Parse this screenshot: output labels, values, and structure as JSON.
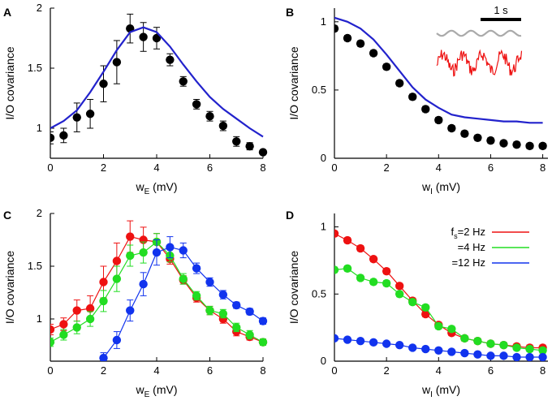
{
  "chart_data": [
    {
      "panel": "A",
      "type": "scatter",
      "xlabel": "w",
      "xlabel_sub": "E",
      "xlabel_unit": " (mV)",
      "ylabel": "I/O covariance",
      "xlim": [
        0,
        8
      ],
      "ylim": [
        0.75,
        2.0
      ],
      "xticks": [
        0,
        2,
        4,
        6,
        8
      ],
      "yticks": [
        1,
        1.5,
        2
      ],
      "ytick_labels": [
        "1",
        "1.5",
        "2"
      ],
      "series": [
        {
          "name": "data",
          "kind": "points_err",
          "color": "#000000",
          "x": [
            0,
            0.5,
            1,
            1.5,
            2,
            2.5,
            3,
            3.5,
            4,
            4.5,
            5,
            5.5,
            6,
            6.5,
            7,
            7.5,
            8
          ],
          "y": [
            0.92,
            0.94,
            1.09,
            1.12,
            1.37,
            1.55,
            1.83,
            1.76,
            1.75,
            1.57,
            1.39,
            1.2,
            1.1,
            1.02,
            0.89,
            0.85,
            0.8
          ],
          "err": [
            0.05,
            0.06,
            0.12,
            0.12,
            0.15,
            0.18,
            0.12,
            0.12,
            0.09,
            0.05,
            0.04,
            0.04,
            0.04,
            0.04,
            0.04,
            0.03,
            0.02
          ]
        },
        {
          "name": "theory",
          "kind": "line",
          "color": "#2222cc",
          "x": [
            0,
            0.5,
            1,
            1.5,
            2,
            2.5,
            3,
            3.5,
            4,
            4.5,
            5,
            5.5,
            6,
            6.5,
            7,
            7.5,
            8
          ],
          "y": [
            1.0,
            1.06,
            1.15,
            1.3,
            1.47,
            1.65,
            1.8,
            1.84,
            1.8,
            1.68,
            1.53,
            1.39,
            1.26,
            1.16,
            1.08,
            1.0,
            0.93
          ]
        }
      ]
    },
    {
      "panel": "B",
      "type": "scatter",
      "xlabel": "w",
      "xlabel_sub": "I",
      "xlabel_unit": " (mV)",
      "ylabel": "I/O covariance",
      "xlim": [
        0,
        8.2
      ],
      "ylim": [
        0,
        1.1
      ],
      "xticks": [
        0,
        2,
        4,
        6,
        8
      ],
      "yticks": [
        0,
        0.5,
        1
      ],
      "ytick_labels": [
        "0",
        "0.5",
        "1"
      ],
      "scale_bar_label": "1 s",
      "series": [
        {
          "name": "data",
          "kind": "points_err",
          "color": "#000000",
          "x": [
            0,
            0.5,
            1,
            1.5,
            2,
            2.5,
            3,
            3.5,
            4,
            4.5,
            5,
            5.5,
            6,
            6.5,
            7,
            7.5,
            8
          ],
          "y": [
            0.95,
            0.88,
            0.84,
            0.77,
            0.67,
            0.55,
            0.45,
            0.36,
            0.28,
            0.22,
            0.18,
            0.15,
            0.13,
            0.11,
            0.1,
            0.09,
            0.09
          ],
          "err": [
            0.02,
            0.02,
            0.02,
            0.02,
            0.02,
            0.02,
            0.02,
            0.02,
            0.02,
            0.02,
            0.02,
            0.02,
            0.02,
            0.02,
            0.02,
            0.02,
            0.02
          ]
        },
        {
          "name": "theory",
          "kind": "line",
          "color": "#2222cc",
          "x": [
            0,
            0.5,
            1,
            1.5,
            2,
            2.5,
            3,
            3.5,
            4,
            4.5,
            5,
            5.5,
            6,
            6.5,
            7,
            7.5,
            8
          ],
          "y": [
            1.03,
            1.0,
            0.95,
            0.87,
            0.76,
            0.64,
            0.52,
            0.43,
            0.37,
            0.32,
            0.3,
            0.29,
            0.28,
            0.27,
            0.27,
            0.26,
            0.26
          ]
        }
      ]
    },
    {
      "panel": "C",
      "type": "line",
      "xlabel": "w",
      "xlabel_sub": "E",
      "xlabel_unit": " (mV)",
      "ylabel": "I/O covariance",
      "xlim": [
        0,
        8
      ],
      "ylim": [
        0.6,
        2.0
      ],
      "xticks": [
        0,
        2,
        4,
        6,
        8
      ],
      "yticks": [
        1,
        1.5,
        2
      ],
      "ytick_labels": [
        "1",
        "1.5",
        "2"
      ],
      "series": [
        {
          "name": "2 Hz",
          "kind": "points_err_line",
          "color": "#ee1111",
          "x": [
            0,
            0.5,
            1,
            1.5,
            2,
            2.5,
            3,
            3.5,
            4,
            4.5,
            5,
            5.5,
            6,
            6.5,
            7,
            7.5,
            8
          ],
          "y": [
            0.9,
            0.95,
            1.08,
            1.1,
            1.35,
            1.55,
            1.78,
            1.75,
            1.73,
            1.57,
            1.37,
            1.2,
            1.08,
            1.0,
            0.88,
            0.83,
            0.78
          ],
          "err": [
            0.05,
            0.06,
            0.1,
            0.12,
            0.15,
            0.17,
            0.15,
            0.12,
            0.08,
            0.05,
            0.04,
            0.04,
            0.04,
            0.04,
            0.04,
            0.03,
            0.03
          ]
        },
        {
          "name": "4 Hz",
          "kind": "points_err_line",
          "color": "#22dd22",
          "x": [
            0,
            0.5,
            1,
            1.5,
            2,
            2.5,
            3,
            3.5,
            4,
            4.5,
            5,
            5.5,
            6,
            6.5,
            7,
            7.5,
            8
          ],
          "y": [
            0.78,
            0.85,
            0.92,
            1.0,
            1.17,
            1.38,
            1.6,
            1.63,
            1.73,
            1.6,
            1.38,
            1.22,
            1.08,
            1.05,
            0.92,
            0.85,
            0.78
          ],
          "err": [
            0.04,
            0.05,
            0.06,
            0.07,
            0.1,
            0.12,
            0.1,
            0.1,
            0.08,
            0.06,
            0.05,
            0.04,
            0.04,
            0.04,
            0.04,
            0.04,
            0.03
          ]
        },
        {
          "name": "12 Hz",
          "kind": "points_err_line",
          "color": "#1133ee",
          "x": [
            2,
            2.5,
            3,
            3.5,
            4,
            4.5,
            5,
            5.5,
            6,
            6.5,
            7,
            7.5,
            8
          ],
          "y": [
            0.63,
            0.8,
            1.08,
            1.33,
            1.63,
            1.68,
            1.65,
            1.48,
            1.35,
            1.23,
            1.13,
            1.07,
            0.98
          ],
          "err": [
            0.05,
            0.08,
            0.1,
            0.11,
            0.12,
            0.1,
            0.07,
            0.05,
            0.04,
            0.04,
            0.03,
            0.03,
            0.03
          ]
        }
      ]
    },
    {
      "panel": "D",
      "type": "line",
      "xlabel": "w",
      "xlabel_sub": "I",
      "xlabel_unit": " (mV)",
      "ylabel": "I/O covariance",
      "xlim": [
        0,
        8.2
      ],
      "ylim": [
        0,
        1.1
      ],
      "xticks": [
        0,
        2,
        4,
        6,
        8
      ],
      "yticks": [
        0,
        0.5,
        1
      ],
      "ytick_labels": [
        "0",
        "0.5",
        "1"
      ],
      "legend": {
        "position": "top-right",
        "entries": [
          {
            "prefix": "f",
            "sub": "s",
            "text": "=2 Hz",
            "color": "#ee1111"
          },
          {
            "prefix": "",
            "sub": "",
            "text": "=4 Hz",
            "color": "#22dd22"
          },
          {
            "prefix": "",
            "sub": "",
            "text": "=12 Hz",
            "color": "#1133ee"
          }
        ]
      },
      "series": [
        {
          "name": "2 Hz",
          "kind": "points_err_line",
          "color": "#ee1111",
          "x": [
            0,
            0.5,
            1,
            1.5,
            2,
            2.5,
            3,
            3.5,
            4,
            4.5,
            5,
            5.5,
            6,
            6.5,
            7,
            7.5,
            8
          ],
          "y": [
            0.95,
            0.9,
            0.84,
            0.76,
            0.67,
            0.56,
            0.45,
            0.35,
            0.27,
            0.21,
            0.17,
            0.15,
            0.13,
            0.12,
            0.11,
            0.1,
            0.1
          ],
          "err": [
            0.02,
            0.02,
            0.02,
            0.02,
            0.02,
            0.02,
            0.02,
            0.02,
            0.02,
            0.02,
            0.02,
            0.02,
            0.02,
            0.02,
            0.02,
            0.02,
            0.02
          ]
        },
        {
          "name": "4 Hz",
          "kind": "points_err_line",
          "color": "#22dd22",
          "x": [
            0,
            0.5,
            1,
            1.5,
            2,
            2.5,
            3,
            3.5,
            4,
            4.5,
            5,
            5.5,
            6,
            6.5,
            7,
            7.5,
            8
          ],
          "y": [
            0.68,
            0.69,
            0.62,
            0.59,
            0.58,
            0.5,
            0.44,
            0.4,
            0.26,
            0.24,
            0.17,
            0.15,
            0.13,
            0.12,
            0.1,
            0.09,
            0.08
          ],
          "err": [
            0.02,
            0.02,
            0.02,
            0.02,
            0.02,
            0.02,
            0.02,
            0.02,
            0.02,
            0.02,
            0.02,
            0.02,
            0.02,
            0.02,
            0.02,
            0.02,
            0.02
          ]
        },
        {
          "name": "12 Hz",
          "kind": "points_err_line",
          "color": "#1133ee",
          "x": [
            0,
            0.5,
            1,
            1.5,
            2,
            2.5,
            3,
            3.5,
            4,
            4.5,
            5,
            5.5,
            6,
            6.5,
            7,
            7.5,
            8
          ],
          "y": [
            0.17,
            0.16,
            0.15,
            0.14,
            0.13,
            0.12,
            0.1,
            0.09,
            0.08,
            0.07,
            0.06,
            0.05,
            0.04,
            0.04,
            0.03,
            0.03,
            0.03
          ],
          "err": [
            0.01,
            0.01,
            0.01,
            0.01,
            0.01,
            0.01,
            0.01,
            0.01,
            0.01,
            0.01,
            0.01,
            0.01,
            0.01,
            0.01,
            0.01,
            0.01,
            0.01
          ]
        }
      ]
    }
  ]
}
